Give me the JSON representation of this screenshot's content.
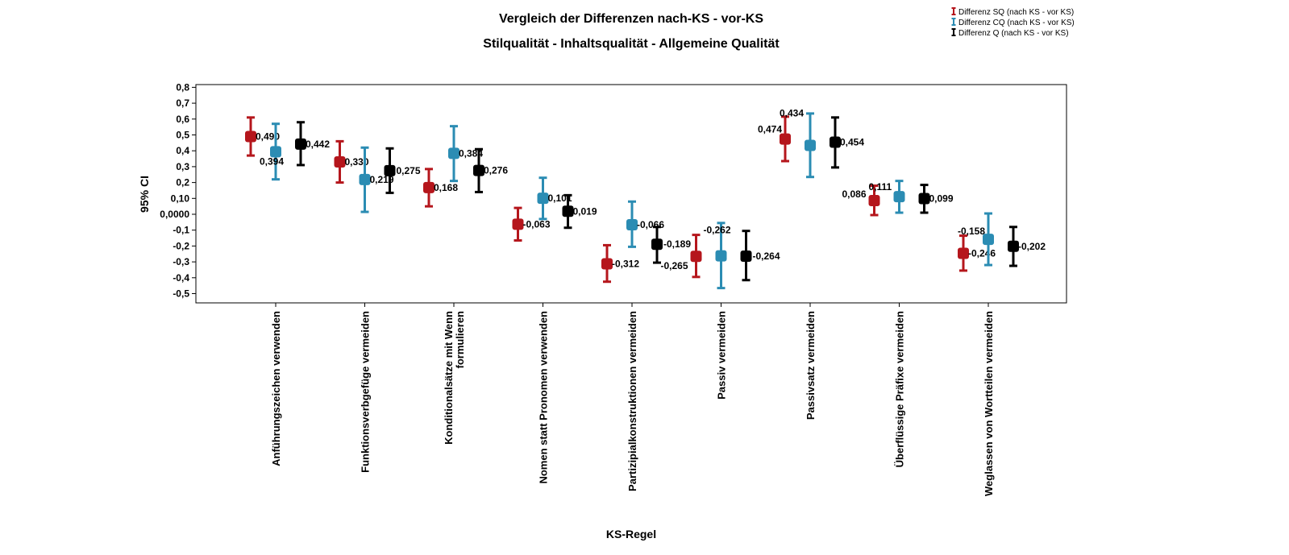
{
  "chart_data": {
    "type": "errorbar",
    "title": "Vergleich der Differenzen nach-KS - vor-KS",
    "subtitle": "Stilqualität - Inhaltsqualität - Allgemeine Qualität",
    "xlabel": "KS-Regel",
    "ylabel": "95% CI",
    "ylim": [
      -0.5,
      0.8
    ],
    "yticks": [
      "0,8",
      "0,7",
      "0,6",
      "0,5",
      "0,4",
      "0,3",
      "0,2",
      "0,10",
      "0,0000",
      "-0,1",
      "-0,2",
      "-0,3",
      "-0,4",
      "-0,5"
    ],
    "ytick_values": [
      0.8,
      0.7,
      0.6,
      0.5,
      0.4,
      0.3,
      0.2,
      0.1,
      0.0,
      -0.1,
      -0.2,
      -0.3,
      -0.4,
      -0.5
    ],
    "grid": false,
    "legend_position": "top-right",
    "categories": [
      [
        "Anführungszeichen verwenden"
      ],
      [
        "Funktionsverbgefüge vermeiden"
      ],
      [
        "Konditionalsätze mit Wenn",
        "formulieren"
      ],
      [
        "Nomen statt Pronomen verwenden"
      ],
      [
        "Partizipialkonstruktionen vermeiden"
      ],
      [
        "Passiv vermeiden"
      ],
      [
        "Passivsatz vermeiden"
      ],
      [
        "Überflüssige Präfixe vermeiden"
      ],
      [
        "Weglassen von Wortteilen vermeiden"
      ]
    ],
    "series": [
      {
        "name": "Differenz SQ (nach KS - vor KS)",
        "color": "#b5161c",
        "mean": [
          0.49,
          0.33,
          0.168,
          -0.063,
          -0.312,
          -0.265,
          0.474,
          0.086,
          -0.246
        ],
        "lower": [
          0.37,
          0.2,
          0.05,
          -0.165,
          -0.425,
          -0.395,
          0.335,
          -0.005,
          -0.355
        ],
        "upper": [
          0.61,
          0.46,
          0.285,
          0.04,
          -0.195,
          -0.13,
          0.615,
          0.18,
          -0.135
        ],
        "labels": [
          "0,490",
          "0,330",
          "0,168",
          "-0,063",
          "-0,312",
          "-0,265",
          "0,474",
          "0,086",
          "-0,246"
        ]
      },
      {
        "name": "Differenz CQ (nach KS - vor KS)",
        "color": "#2b8cb3",
        "mean": [
          0.394,
          0.219,
          0.384,
          0.101,
          -0.066,
          -0.262,
          0.434,
          0.111,
          -0.158
        ],
        "lower": [
          0.22,
          0.015,
          0.21,
          -0.03,
          -0.205,
          -0.465,
          0.235,
          0.01,
          -0.32
        ],
        "upper": [
          0.57,
          0.42,
          0.555,
          0.23,
          0.08,
          -0.055,
          0.635,
          0.21,
          0.005
        ],
        "labels": [
          "0,394",
          "0,219",
          "0,384",
          "0,101",
          "-0,066",
          "-0,262",
          "0,434",
          "0,111",
          "-0,158"
        ]
      },
      {
        "name": "Differenz Q (nach KS - vor KS)",
        "color": "#000000",
        "mean": [
          0.442,
          0.275,
          0.276,
          0.019,
          -0.189,
          -0.264,
          0.454,
          0.099,
          -0.202
        ],
        "lower": [
          0.31,
          0.135,
          0.14,
          -0.085,
          -0.305,
          -0.415,
          0.295,
          0.01,
          -0.325
        ],
        "upper": [
          0.58,
          0.415,
          0.41,
          0.12,
          -0.08,
          -0.105,
          0.61,
          0.185,
          -0.08
        ],
        "labels": [
          "0,442",
          "0,275",
          "0,276",
          "0,019",
          "-0,189",
          "-0,264",
          "0,454",
          "0,099",
          "-0,202"
        ]
      }
    ]
  }
}
